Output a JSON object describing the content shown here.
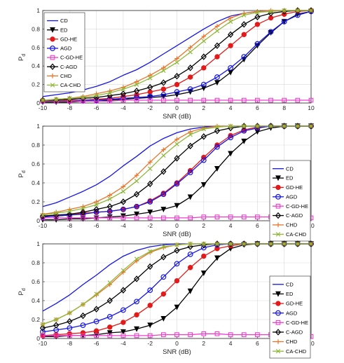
{
  "chart_data": [
    {
      "type": "line",
      "xlabel": "SNR (dB)",
      "ylabel": "P",
      "ylabel_sub": "d",
      "xlim": [
        -10,
        10
      ],
      "ylim": [
        0,
        1
      ],
      "xticks": [
        "-10",
        "-8",
        "-6",
        "-4",
        "-2",
        "0",
        "2",
        "4",
        "6",
        "8",
        "10"
      ],
      "yticks": [
        "0",
        "0.2",
        "0.4",
        "0.6",
        "0.8",
        "1"
      ],
      "grid": true,
      "legend_position": "top-left",
      "x": [
        -10,
        -9,
        -8,
        -7,
        -6,
        -5,
        -4,
        -3,
        -2,
        -1,
        0,
        1,
        2,
        3,
        4,
        5,
        6,
        7,
        8,
        9,
        10
      ],
      "series": [
        {
          "name": "CD",
          "color": "#1515e8",
          "marker": "none",
          "values": [
            0.07,
            0.09,
            0.11,
            0.14,
            0.18,
            0.23,
            0.3,
            0.36,
            0.44,
            0.53,
            0.62,
            0.71,
            0.8,
            0.88,
            0.94,
            0.97,
            0.99,
            1,
            1,
            1,
            1
          ]
        },
        {
          "name": "ED",
          "color": "#000000",
          "marker": "triangle-down",
          "values": [
            0.01,
            0.01,
            0.01,
            0.02,
            0.02,
            0.03,
            0.04,
            0.05,
            0.06,
            0.07,
            0.09,
            0.12,
            0.16,
            0.22,
            0.33,
            0.47,
            0.62,
            0.76,
            0.88,
            0.96,
            0.99
          ]
        },
        {
          "name": "GD-HE",
          "color": "#e31a1a",
          "marker": "circle",
          "values": [
            0.02,
            0.02,
            0.03,
            0.03,
            0.04,
            0.05,
            0.07,
            0.09,
            0.12,
            0.15,
            0.2,
            0.28,
            0.38,
            0.5,
            0.62,
            0.74,
            0.85,
            0.92,
            0.96,
            0.99,
            1
          ]
        },
        {
          "name": "AGD",
          "color": "#1515e8",
          "marker": "circle-open",
          "values": [
            0.02,
            0.02,
            0.02,
            0.03,
            0.03,
            0.04,
            0.05,
            0.06,
            0.07,
            0.09,
            0.12,
            0.15,
            0.2,
            0.28,
            0.38,
            0.5,
            0.64,
            0.77,
            0.88,
            0.95,
            0.99
          ]
        },
        {
          "name": "C-GD-HE",
          "color": "#ee3cd0",
          "marker": "square-open",
          "values": [
            0.02,
            0.02,
            0.02,
            0.02,
            0.02,
            0.02,
            0.03,
            0.03,
            0.03,
            0.03,
            0.03,
            0.03,
            0.03,
            0.03,
            0.03,
            0.03,
            0.03,
            0.03,
            0.03,
            0.03,
            0.03
          ]
        },
        {
          "name": "C-AGD",
          "color": "#000000",
          "marker": "diamond-open",
          "values": [
            0.03,
            0.03,
            0.04,
            0.05,
            0.06,
            0.08,
            0.1,
            0.13,
            0.17,
            0.22,
            0.29,
            0.38,
            0.5,
            0.62,
            0.74,
            0.85,
            0.93,
            0.97,
            0.99,
            1,
            1
          ]
        },
        {
          "name": "CHD",
          "color": "#e8742a",
          "marker": "plus",
          "values": [
            0.03,
            0.04,
            0.05,
            0.07,
            0.1,
            0.13,
            0.17,
            0.23,
            0.3,
            0.38,
            0.48,
            0.6,
            0.72,
            0.83,
            0.92,
            0.97,
            0.99,
            1,
            1,
            1,
            1
          ]
        },
        {
          "name": "CA-CHD",
          "color": "#8fb83a",
          "marker": "x",
          "values": [
            0.03,
            0.04,
            0.05,
            0.06,
            0.08,
            0.11,
            0.15,
            0.2,
            0.27,
            0.35,
            0.44,
            0.55,
            0.67,
            0.78,
            0.88,
            0.95,
            0.98,
            0.99,
            1,
            1,
            1
          ]
        }
      ]
    },
    {
      "type": "line",
      "xlabel": "SNR (dB)",
      "ylabel": "P",
      "ylabel_sub": "d",
      "xlim": [
        -10,
        10
      ],
      "ylim": [
        0,
        1
      ],
      "xticks": [
        "-10",
        "-8",
        "-6",
        "-4",
        "-2",
        "0",
        "2",
        "4",
        "6",
        "8",
        "10"
      ],
      "yticks": [
        "0",
        "0.2",
        "0.4",
        "0.6",
        "0.8",
        "1"
      ],
      "grid": true,
      "legend_position": "right",
      "x": [
        -10,
        -9,
        -8,
        -7,
        -6,
        -5,
        -4,
        -3,
        -2,
        -1,
        0,
        1,
        2,
        3,
        4,
        5,
        6,
        7,
        8,
        9,
        10
      ],
      "series": [
        {
          "name": "CD",
          "color": "#1515e8",
          "marker": "none",
          "values": [
            0.15,
            0.19,
            0.25,
            0.31,
            0.38,
            0.47,
            0.58,
            0.68,
            0.79,
            0.87,
            0.93,
            0.97,
            0.99,
            1,
            1,
            1,
            1,
            1,
            1,
            1,
            1
          ]
        },
        {
          "name": "ED",
          "color": "#000000",
          "marker": "triangle-down",
          "values": [
            0.01,
            0.01,
            0.02,
            0.02,
            0.03,
            0.04,
            0.05,
            0.07,
            0.09,
            0.12,
            0.16,
            0.25,
            0.38,
            0.55,
            0.71,
            0.84,
            0.94,
            0.98,
            1,
            1,
            1
          ]
        },
        {
          "name": "GD-HE",
          "color": "#e31a1a",
          "marker": "circle",
          "values": [
            0.04,
            0.05,
            0.06,
            0.08,
            0.09,
            0.1,
            0.12,
            0.15,
            0.21,
            0.29,
            0.4,
            0.53,
            0.67,
            0.8,
            0.9,
            0.96,
            0.99,
            1,
            1,
            1,
            1
          ]
        },
        {
          "name": "AGD",
          "color": "#1515e8",
          "marker": "circle-open",
          "values": [
            0.04,
            0.05,
            0.06,
            0.07,
            0.09,
            0.1,
            0.12,
            0.15,
            0.2,
            0.28,
            0.39,
            0.51,
            0.64,
            0.78,
            0.88,
            0.95,
            0.98,
            1,
            1,
            1,
            1
          ]
        },
        {
          "name": "C-GD-HE",
          "color": "#ee3cd0",
          "marker": "square-open",
          "values": [
            0.03,
            0.03,
            0.03,
            0.03,
            0.03,
            0.03,
            0.03,
            0.03,
            0.03,
            0.03,
            0.03,
            0.03,
            0.04,
            0.04,
            0.04,
            0.04,
            0.04,
            0.04,
            0.03,
            0.03,
            0.03
          ]
        },
        {
          "name": "C-AGD",
          "color": "#000000",
          "marker": "diamond-open",
          "values": [
            0.05,
            0.06,
            0.07,
            0.09,
            0.12,
            0.15,
            0.2,
            0.28,
            0.39,
            0.52,
            0.66,
            0.79,
            0.89,
            0.95,
            0.98,
            1,
            1,
            1,
            1,
            1,
            1
          ]
        },
        {
          "name": "CHD",
          "color": "#e8742a",
          "marker": "plus",
          "values": [
            0.07,
            0.09,
            0.12,
            0.15,
            0.2,
            0.27,
            0.36,
            0.48,
            0.62,
            0.75,
            0.86,
            0.94,
            0.98,
            1,
            1,
            1,
            1,
            1,
            1,
            1,
            1
          ]
        },
        {
          "name": "CA-CHD",
          "color": "#8fb83a",
          "marker": "x",
          "values": [
            0.06,
            0.08,
            0.1,
            0.13,
            0.17,
            0.23,
            0.31,
            0.42,
            0.55,
            0.69,
            0.81,
            0.91,
            0.97,
            0.99,
            1,
            1,
            1,
            1,
            1,
            1,
            1
          ]
        }
      ]
    },
    {
      "type": "line",
      "xlabel": "SNR (dB)",
      "ylabel": "P",
      "ylabel_sub": "d",
      "xlim": [
        -10,
        10
      ],
      "ylim": [
        0,
        1
      ],
      "xticks": [
        "-10",
        "-8",
        "-6",
        "-4",
        "-2",
        "0",
        "2",
        "4",
        "6",
        "8",
        "10"
      ],
      "yticks": [
        "0",
        "0.2",
        "0.4",
        "0.6",
        "0.8",
        "1"
      ],
      "grid": true,
      "legend_position": "right",
      "x": [
        -10,
        -9,
        -8,
        -7,
        -6,
        -5,
        -4,
        -3,
        -2,
        -1,
        0,
        1,
        2,
        3,
        4,
        5,
        6,
        7,
        8,
        9,
        10
      ],
      "series": [
        {
          "name": "CD",
          "color": "#1515e8",
          "marker": "none",
          "values": [
            0.29,
            0.37,
            0.46,
            0.57,
            0.67,
            0.78,
            0.87,
            0.93,
            0.97,
            0.99,
            1,
            1,
            1,
            1,
            1,
            1,
            1,
            1,
            1,
            1,
            1
          ]
        },
        {
          "name": "ED",
          "color": "#000000",
          "marker": "triangle-down",
          "values": [
            0.02,
            0.02,
            0.03,
            0.03,
            0.04,
            0.06,
            0.07,
            0.1,
            0.14,
            0.21,
            0.33,
            0.5,
            0.69,
            0.85,
            0.95,
            0.99,
            1,
            1,
            1,
            1,
            1
          ]
        },
        {
          "name": "GD-HE",
          "color": "#e31a1a",
          "marker": "circle",
          "values": [
            0.03,
            0.04,
            0.05,
            0.06,
            0.08,
            0.12,
            0.17,
            0.25,
            0.35,
            0.47,
            0.61,
            0.75,
            0.87,
            0.95,
            0.98,
            1,
            1,
            1,
            1,
            1,
            1
          ]
        },
        {
          "name": "AGD",
          "color": "#1515e8",
          "marker": "circle-open",
          "values": [
            0.07,
            0.09,
            0.11,
            0.14,
            0.18,
            0.23,
            0.3,
            0.39,
            0.51,
            0.65,
            0.79,
            0.89,
            0.96,
            0.99,
            1,
            1,
            1,
            1,
            1,
            1,
            1
          ]
        },
        {
          "name": "C-GD-HE",
          "color": "#ee3cd0",
          "marker": "square-open",
          "values": [
            0.03,
            0.03,
            0.03,
            0.03,
            0.03,
            0.03,
            0.03,
            0.03,
            0.03,
            0.04,
            0.04,
            0.04,
            0.05,
            0.05,
            0.04,
            0.04,
            0.04,
            0.04,
            0.03,
            0.02,
            0.02
          ]
        },
        {
          "name": "C-AGD",
          "color": "#000000",
          "marker": "diamond-open",
          "values": [
            0.11,
            0.14,
            0.18,
            0.24,
            0.31,
            0.4,
            0.51,
            0.63,
            0.76,
            0.86,
            0.93,
            0.97,
            0.99,
            1,
            1,
            1,
            1,
            1,
            1,
            1,
            1
          ]
        },
        {
          "name": "CHD",
          "color": "#e8742a",
          "marker": "plus",
          "values": [
            0.15,
            0.2,
            0.27,
            0.36,
            0.46,
            0.57,
            0.7,
            0.82,
            0.91,
            0.96,
            0.99,
            1,
            1,
            1,
            1,
            1,
            1,
            1,
            1,
            1,
            1
          ]
        },
        {
          "name": "CA-CHD",
          "color": "#8fb83a",
          "marker": "x",
          "values": [
            0.15,
            0.2,
            0.27,
            0.36,
            0.47,
            0.59,
            0.72,
            0.84,
            0.92,
            0.97,
            0.99,
            1,
            1,
            1,
            1,
            1,
            1,
            1,
            1,
            1,
            1
          ]
        }
      ]
    }
  ]
}
